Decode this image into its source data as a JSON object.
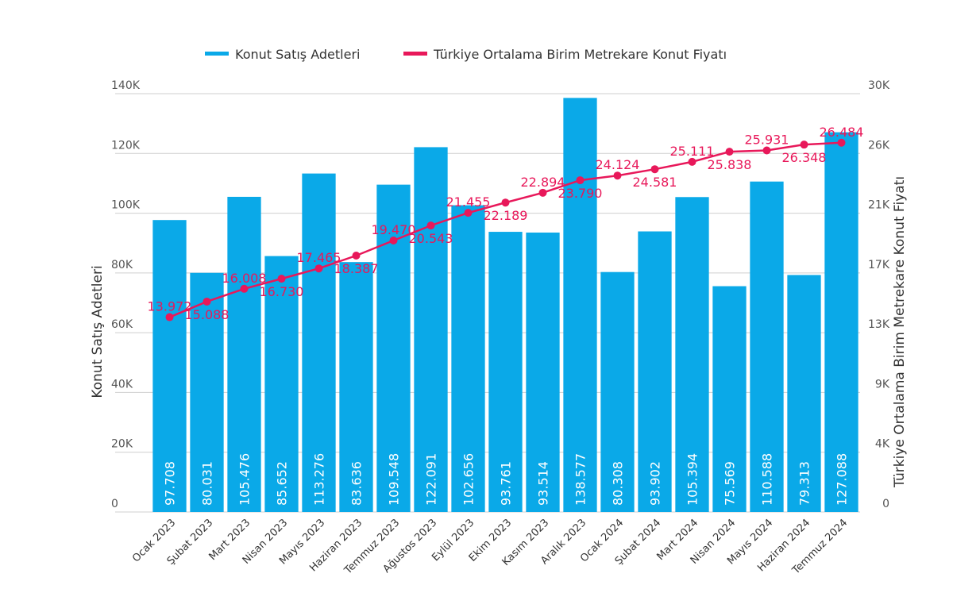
{
  "chart_data": {
    "type": "bar",
    "title": "",
    "categories": [
      "Ocak 2023",
      "Şubat 2023",
      "Mart 2023",
      "Nisan 2023",
      "Mayıs 2023",
      "Haziran 2023",
      "Temmuz 2023",
      "Ağustos 2023",
      "Eylül 2023",
      "Ekim 2023",
      "Kasım 2023",
      "Aralık 2023",
      "Ocak 2024",
      "Şubat 2024",
      "Mart 2024",
      "Nisan 2024",
      "Mayıs 2024",
      "Haziran 2024",
      "Temmuz 2024"
    ],
    "series": [
      {
        "name": "Konut Satış Adetleri",
        "type": "bar",
        "axis": "left",
        "color": "#0aa9e8",
        "values": [
          97708,
          80031,
          105476,
          85652,
          113276,
          83636,
          109548,
          122091,
          102656,
          93761,
          93514,
          138577,
          80308,
          93902,
          105394,
          75569,
          110588,
          79313,
          127088
        ],
        "labels": [
          "97.708",
          "80.031",
          "105.476",
          "85.652",
          "113.276",
          "83.636",
          "109.548",
          "122.091",
          "102.656",
          "93.761",
          "93.514",
          "138.577",
          "80.308",
          "93.902",
          "105.394",
          "75.569",
          "110.588",
          "79.313",
          "127.088"
        ]
      },
      {
        "name": "Türkiye Ortalama Birim Metrekare Konut Fiyatı",
        "type": "line",
        "axis": "right",
        "color": "#e8185a",
        "values": [
          13972,
          15088,
          16008,
          16730,
          17465,
          18387,
          19470,
          20543,
          21455,
          22189,
          22894,
          23790,
          24124,
          24581,
          25111,
          25838,
          25931,
          26348,
          26484
        ],
        "labels": [
          "13.972",
          "15.088",
          "16.008",
          "16.730",
          "17.465",
          "18.387",
          "19.470",
          "20.543",
          "21.455",
          "22.189",
          "22.894",
          "23.790",
          "24.124",
          "24.581",
          "25.111",
          "25.838",
          "25.931",
          "26.348",
          "26.484"
        ]
      }
    ],
    "y_left": {
      "label": "Konut Satış Adetleri",
      "range": [
        0,
        140000
      ],
      "ticks": [
        0,
        20000,
        40000,
        60000,
        80000,
        100000,
        120000,
        140000
      ],
      "tick_labels": [
        "0",
        "20K",
        "40K",
        "60K",
        "80K",
        "100K",
        "120K",
        "140K"
      ]
    },
    "y_right": {
      "label": "Türkiye Ortalama Birim Metrekare Konut Fiyatı",
      "range": [
        0,
        30000
      ],
      "ticks": [
        0,
        4286,
        8571,
        12857,
        17143,
        21429,
        25714,
        30000
      ],
      "tick_labels": [
        "0",
        "4K",
        "9K",
        "13K",
        "17K",
        "21K",
        "26K",
        "30K"
      ]
    },
    "grid": true,
    "legend_position": "top-center"
  },
  "colors": {
    "bar": "#0aa9e8",
    "line": "#e8185a",
    "grid": "#cfcfcf",
    "text": "#333333"
  }
}
